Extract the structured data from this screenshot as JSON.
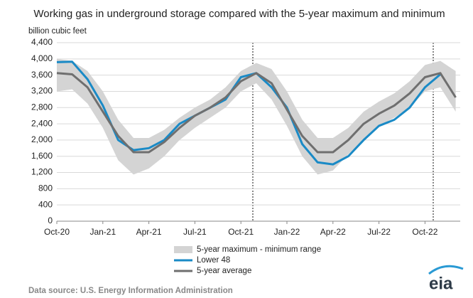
{
  "chart_data": {
    "type": "line",
    "title": "Working gas in underground  storage compared with the 5-year maximum and minimum",
    "y_label": "billion cubic feet",
    "source": "Data source:  U.S. Energy Information Administration",
    "logo": "eia",
    "categories": [
      "Oct-20",
      null,
      null,
      "Jan-21",
      null,
      null,
      "Apr-21",
      null,
      null,
      "Jul-21",
      null,
      null,
      "Oct-21",
      null,
      null,
      "Jan-22",
      null,
      null,
      "Apr-22",
      null,
      null,
      "Jul-22",
      null,
      null,
      "Oct-22",
      null,
      null
    ],
    "ylim": [
      0,
      4400
    ],
    "yticks": [
      0,
      400,
      800,
      {
        "value": 1200,
        "label": "1,200"
      },
      {
        "value": 1600,
        "label": "1,600"
      },
      {
        "value": 2000,
        "label": "2,000"
      },
      {
        "value": 2400,
        "label": "2,400"
      },
      {
        "value": 2800,
        "label": "2,800"
      },
      {
        "value": 3200,
        "label": "3,200"
      },
      {
        "value": 3600,
        "label": "3,600"
      },
      {
        "value": 4000,
        "label": "4,000"
      },
      {
        "value": 4400,
        "label": "4,400"
      }
    ],
    "grid": true,
    "range": {
      "name": "5-year maximum - minimum range",
      "color": "#d4d4d4",
      "high": [
        4000,
        3950,
        3700,
        3200,
        2500,
        2050,
        2050,
        2250,
        2550,
        2800,
        3000,
        3300,
        3700,
        3900,
        3750,
        3200,
        2500,
        2050,
        2050,
        2300,
        2700,
        2950,
        3150,
        3450,
        3850,
        3950,
        3700
      ],
      "low": [
        3200,
        3250,
        2900,
        2300,
        1500,
        1150,
        1300,
        1600,
        2000,
        2300,
        2550,
        2800,
        3200,
        3400,
        3000,
        2350,
        1600,
        1150,
        1250,
        1650,
        2000,
        2350,
        2550,
        2800,
        3200,
        3300,
        2700
      ]
    },
    "series": [
      {
        "name": "Lower 48",
        "color": "#1a8ac6",
        "values": [
          3920,
          3930,
          3500,
          2850,
          2000,
          1750,
          1800,
          2000,
          2400,
          2600,
          2800,
          3000,
          3550,
          3650,
          3300,
          2800,
          1900,
          1450,
          1400,
          1600,
          2000,
          2350,
          2500,
          2800,
          3300,
          3620,
          null
        ]
      },
      {
        "name": "5-year average",
        "color": "#6f6f6f",
        "values": [
          3650,
          3620,
          3300,
          2700,
          2100,
          1700,
          1700,
          1950,
          2300,
          2600,
          2800,
          3050,
          3450,
          3650,
          3400,
          2750,
          2100,
          1700,
          1700,
          2000,
          2400,
          2650,
          2850,
          3150,
          3550,
          3650,
          3050
        ]
      }
    ]
  }
}
